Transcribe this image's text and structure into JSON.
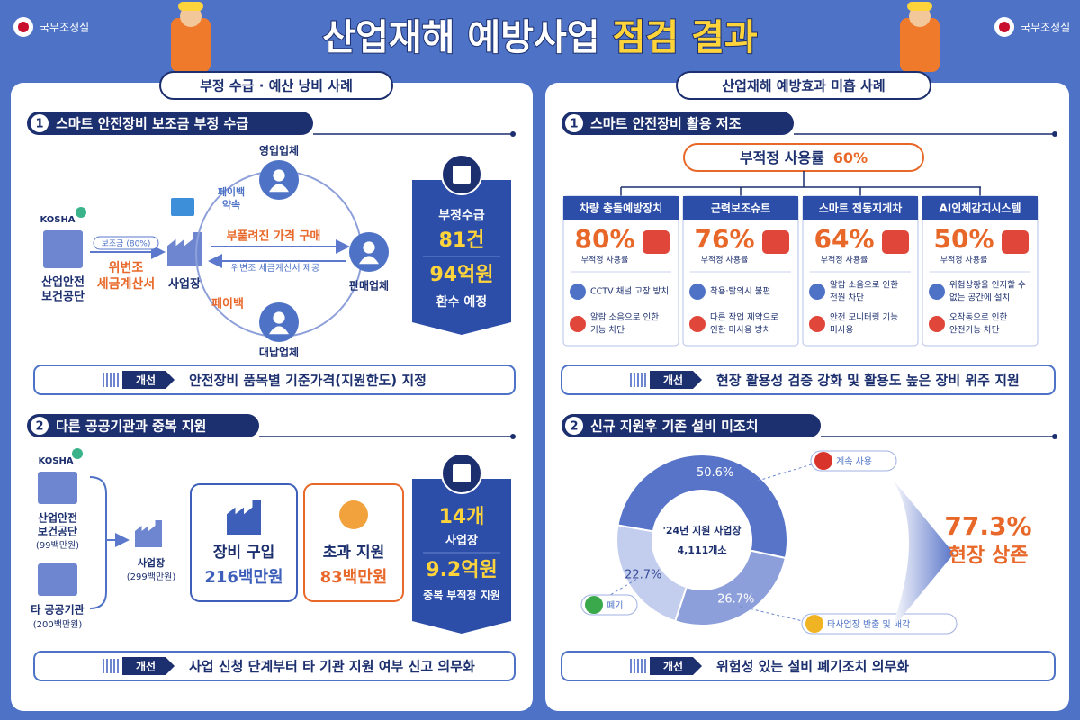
{
  "header": {
    "title_white": "산업재해 예방사업",
    "title_yellow": "점검 결과",
    "logo_left": "국무조정실",
    "logo_right": "국무조정실"
  },
  "left": {
    "tab": "부정 수급 · 예산 낭비 사례",
    "s1": {
      "num": "1",
      "title": "스마트 안전장비 보조금 부정 수급",
      "kosha": "KOSHA",
      "nodes": {
        "agency": [
          "산업안전",
          "보건공단"
        ],
        "site": "사업장",
        "sales": "영업업체",
        "seller": "판매업체",
        "proxy": "대납업체"
      },
      "flows": {
        "subsidy": "보조금 (80%)",
        "forged": [
          "위변조",
          "세금계산서"
        ],
        "payback_promise": [
          "페이백",
          "약속"
        ],
        "inflated": "부풀려진 가격 구매",
        "forged_provide": "위변조 세금계산서 제공",
        "payback": "페이백"
      },
      "callout": {
        "label": "부정수급",
        "count": "81건",
        "amount": "94억원",
        "note": "환수 예정"
      },
      "improve": {
        "tag": "개선",
        "text": "안전장비 품목별 기준가격(지원한도) 지정"
      }
    },
    "s2": {
      "num": "2",
      "title": "다른 공공기관과 중복 지원",
      "kosha": "KOSHA",
      "agency": {
        "name": [
          "산업안전",
          "보건공단"
        ],
        "amount": "(99백만원)"
      },
      "other": {
        "name": "타 공공기관",
        "amount": "(200백만원)"
      },
      "site": {
        "name": "사업장",
        "amount": "(299백만원)"
      },
      "purchase": {
        "label": "장비 구입",
        "amount": "216백만원"
      },
      "excess": {
        "label": "초과 지원",
        "amount": "83백만원"
      },
      "callout": {
        "count": "14개",
        "unit": "사업장",
        "amount": "9.2억원",
        "note": "중복 부적정 지원"
      },
      "improve": {
        "tag": "개선",
        "text": "사업 신청 단계부터 타 기관 지원 여부 신고 의무화"
      }
    }
  },
  "right": {
    "tab": "산업재해 예방효과 미흡 사례",
    "s1": {
      "num": "1",
      "title": "스마트 안전장비 활용 저조",
      "summary": {
        "label": "부적정 사용률",
        "value": "60%"
      },
      "cards": [
        {
          "title": "차량 충돌예방장치",
          "rate": "80%",
          "rate_label": "부적정 사용률",
          "items": [
            [
              "CCTV 채널 고장 방치"
            ],
            [
              "알람 소음으로 인한",
              "기능 차단"
            ]
          ]
        },
        {
          "title": "근력보조슈트",
          "rate": "76%",
          "rate_label": "부적정 사용률",
          "items": [
            [
              "착용·탈의시 불편"
            ],
            [
              "다른 작업 제약으로",
              "인한 미사용 방치"
            ]
          ]
        },
        {
          "title": "스마트 전동지게차",
          "rate": "64%",
          "rate_label": "부적정 사용률",
          "items": [
            [
              "알람 소음으로 인한",
              "전원 차단"
            ],
            [
              "안전 모니터링 기능",
              "미사용"
            ]
          ]
        },
        {
          "title": "AI인체감지시스템",
          "rate": "50%",
          "rate_label": "부적정 사용률",
          "items": [
            [
              "위험상황을 인지할 수",
              "없는 공간에 설치"
            ],
            [
              "오작동으로 인한",
              "안전기능 차단"
            ]
          ]
        }
      ],
      "improve": {
        "tag": "개선",
        "text": "현장 활용성 검증 강화 및 활용도 높은 장비 위주 지원"
      }
    },
    "s2": {
      "num": "2",
      "title": "신규 지원후 기존 설비 미조치",
      "donut": {
        "type": "pie",
        "names": [
          "계속 사용",
          "타사업장 반출 및 매각",
          "폐기"
        ],
        "values": [
          50.6,
          26.7,
          22.7
        ],
        "value_labels": [
          "50.6%",
          "26.7%",
          "22.7%"
        ],
        "colors": [
          "#5874c8",
          "#8d9fda",
          "#c3cdee"
        ],
        "center": [
          "'24년 지원 사업장",
          "4,111개소"
        ]
      },
      "result": {
        "value": "77.3%",
        "label": "현장 상존"
      },
      "improve": {
        "tag": "개선",
        "text": "위험성 있는 설비 폐기조치 의무화"
      }
    }
  }
}
